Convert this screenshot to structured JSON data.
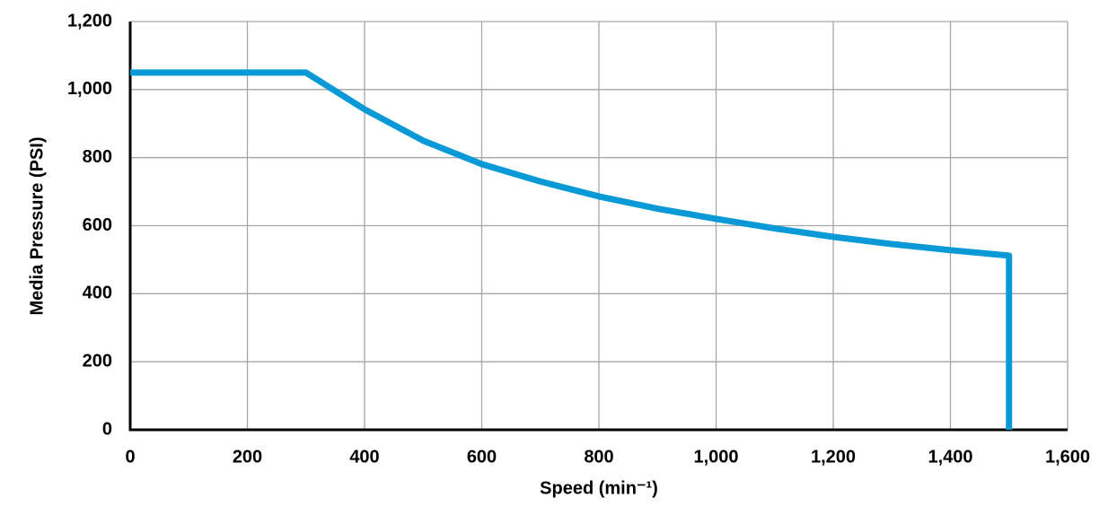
{
  "chart_data": {
    "type": "line",
    "x_label": "Speed (min⁻¹)",
    "y_label": "Media Pressure (PSI)",
    "x": [
      0,
      300,
      400,
      500,
      600,
      700,
      800,
      900,
      1000,
      1100,
      1200,
      1300,
      1400,
      1500,
      1500
    ],
    "series": [
      {
        "color": "#0899d6",
        "values": [
          1050,
          1050,
          942,
          850,
          781,
          730,
          686,
          650,
          620,
          592,
          567,
          546,
          528,
          512,
          0
        ]
      }
    ],
    "xlim": [
      0,
      1600
    ],
    "xticks": [
      0,
      200,
      400,
      600,
      800,
      {
        "value": 1000,
        "label": "1,000"
      },
      {
        "value": 1200,
        "label": "1,200"
      },
      {
        "value": 1400,
        "label": "1,400"
      },
      {
        "value": 1600,
        "label": "1,600"
      }
    ],
    "ylim": [
      0,
      1200
    ],
    "yticks": [
      0,
      200,
      400,
      600,
      800,
      {
        "value": 1000,
        "label": "1,000"
      },
      {
        "value": 1200,
        "label": "1,200"
      }
    ],
    "grid": true
  }
}
